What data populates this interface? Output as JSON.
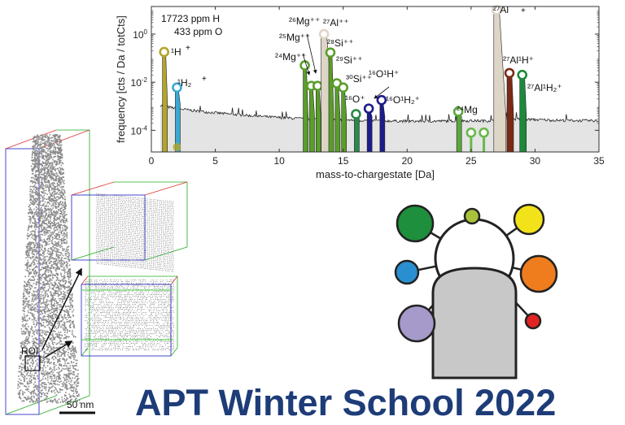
{
  "title": "APT Winter School 2022",
  "reconstruction": {
    "roi_label": "ROI",
    "scale_bar_label": "50 nm"
  },
  "chart_data": {
    "type": "line",
    "xlabel": "mass-to-chargestate [Da]",
    "ylabel": "frequency [cts / Da / totCts]",
    "xlim": [
      0,
      35
    ],
    "ylim": [
      1.26e-05,
      14
    ],
    "yscale": "log",
    "xticks": [
      "0",
      "5",
      "10",
      "15",
      "20",
      "25",
      "30",
      "35"
    ],
    "yticks": [
      {
        "value": 1,
        "label": "10^0"
      },
      {
        "value": 0.01,
        "label": "10^-2"
      },
      {
        "value": 0.0001,
        "label": "10^-4"
      }
    ],
    "annotations": [
      "17723 ppm H",
      "433 ppm O"
    ],
    "background": {
      "x": [
        0.7,
        1,
        2,
        4,
        6,
        8,
        10,
        12,
        14,
        16,
        18,
        20,
        22,
        24,
        26,
        27,
        28,
        30,
        32,
        35
      ],
      "y": [
        0.0011,
        0.001,
        0.0008,
        0.0006,
        0.00048,
        0.0004,
        0.00034,
        0.0003,
        0.00028,
        0.00026,
        0.00025,
        0.00024,
        0.00024,
        0.00025,
        0.00025,
        0.00025,
        0.0003,
        0.00028,
        0.00026,
        0.00025
      ]
    },
    "peaks": [
      {
        "ion": "1H +",
        "x": 1,
        "y": 0.18,
        "color": "#b3a52c"
      },
      {
        "ion": "1H2 +",
        "x": 2,
        "y": 0.006,
        "color": "#3aa8d2"
      },
      {
        "ion": "",
        "x": 2,
        "y": 2e-05,
        "color": "#b3a52c",
        "filled": true
      },
      {
        "ion": "24Mg ++",
        "x": 12,
        "y": 0.05,
        "color": "#5a9e2a"
      },
      {
        "ion": "25Mg ++",
        "x": 12.5,
        "y": 0.007,
        "color": "#5a9e2a"
      },
      {
        "ion": "26Mg ++",
        "x": 13,
        "y": 0.007,
        "color": "#5a9e2a"
      },
      {
        "ion": "27Al ++",
        "x": 13.5,
        "y": 1.0,
        "color": "#ddd5c6"
      },
      {
        "ion": "28Si ++",
        "x": 14,
        "y": 0.17,
        "color": "#5a9e2a"
      },
      {
        "ion": "29Si ++",
        "x": 14.5,
        "y": 0.009,
        "color": "#5a9e2a"
      },
      {
        "ion": "30Si ++",
        "x": 15,
        "y": 0.006,
        "color": "#5a9e2a"
      },
      {
        "ion": "16O +",
        "x": 16,
        "y": 0.00047,
        "color": "#2a8a4a"
      },
      {
        "ion": "16O1H +",
        "x": 17,
        "y": 0.0008,
        "color": "#1c1c8c"
      },
      {
        "ion": "16O1H2 +",
        "x": 18,
        "y": 0.0018,
        "color": "#1c1c8c"
      },
      {
        "ion": "24Mg +",
        "x": 24,
        "y": 0.0006,
        "color": "#5aa83a"
      },
      {
        "ion": "",
        "x": 25,
        "y": 8e-05,
        "color": "#6ab84a"
      },
      {
        "ion": "",
        "x": 26,
        "y": 8e-05,
        "color": "#6ab84a"
      },
      {
        "ion": "27Al +",
        "x": 27,
        "y": 10,
        "color": "#ddd5c6"
      },
      {
        "ion": "27Al1H +",
        "x": 28,
        "y": 0.024,
        "color": "#7a2a14"
      },
      {
        "ion": "27Al1H2 +",
        "x": 29,
        "y": 0.02,
        "color": "#1c8a3a"
      }
    ]
  },
  "logo": {
    "satellite_colors": [
      "#1e8f3c",
      "#a8c23a",
      "#f2e21a",
      "#2a8fd0",
      "#ef7d1e",
      "#a59ac9",
      "#e02424"
    ],
    "body_color": "#c8c8c8"
  }
}
